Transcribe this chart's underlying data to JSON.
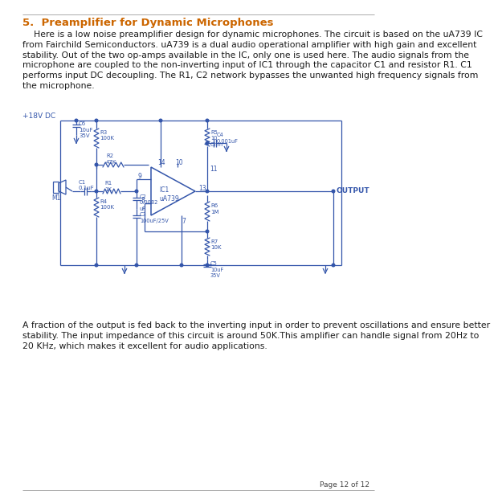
{
  "title": "5.  Preamplifier for Dynamic Microphones",
  "title_color": "#cc6600",
  "title_fontsize": 9.5,
  "body_color": "#1a1a1a",
  "body_fontsize": 7.8,
  "intro_text": "    Here is a low noise preamplifier design for dynamic microphones. The circuit is based on the uA739 IC\nfrom Fairchild Semiconductors. uA739 is a dual audio operational amplifier with high gain and excellent\nstability. Out of the two op-amps available in the IC, only one is used here. The audio signals from the\nmicrophone are coupled to the non-inverting input of IC1 through the capacitor C1 and resistor R1. C1\nperforms input DC decoupling. The R1, C2 network bypasses the unwanted high frequency signals from\nthe microphone.",
  "footer_text": "A fraction of the output is fed back to the inverting input in order to prevent oscillations and ensure better\nstability. The input impedance of this circuit is around 50K.This amplifier can handle signal from 20Hz to\n20 KHz, which makes it excellent for audio applications.",
  "page_text": "Page 12 of 12",
  "circuit_color": "#3355aa",
  "bg_color": "#ffffff"
}
